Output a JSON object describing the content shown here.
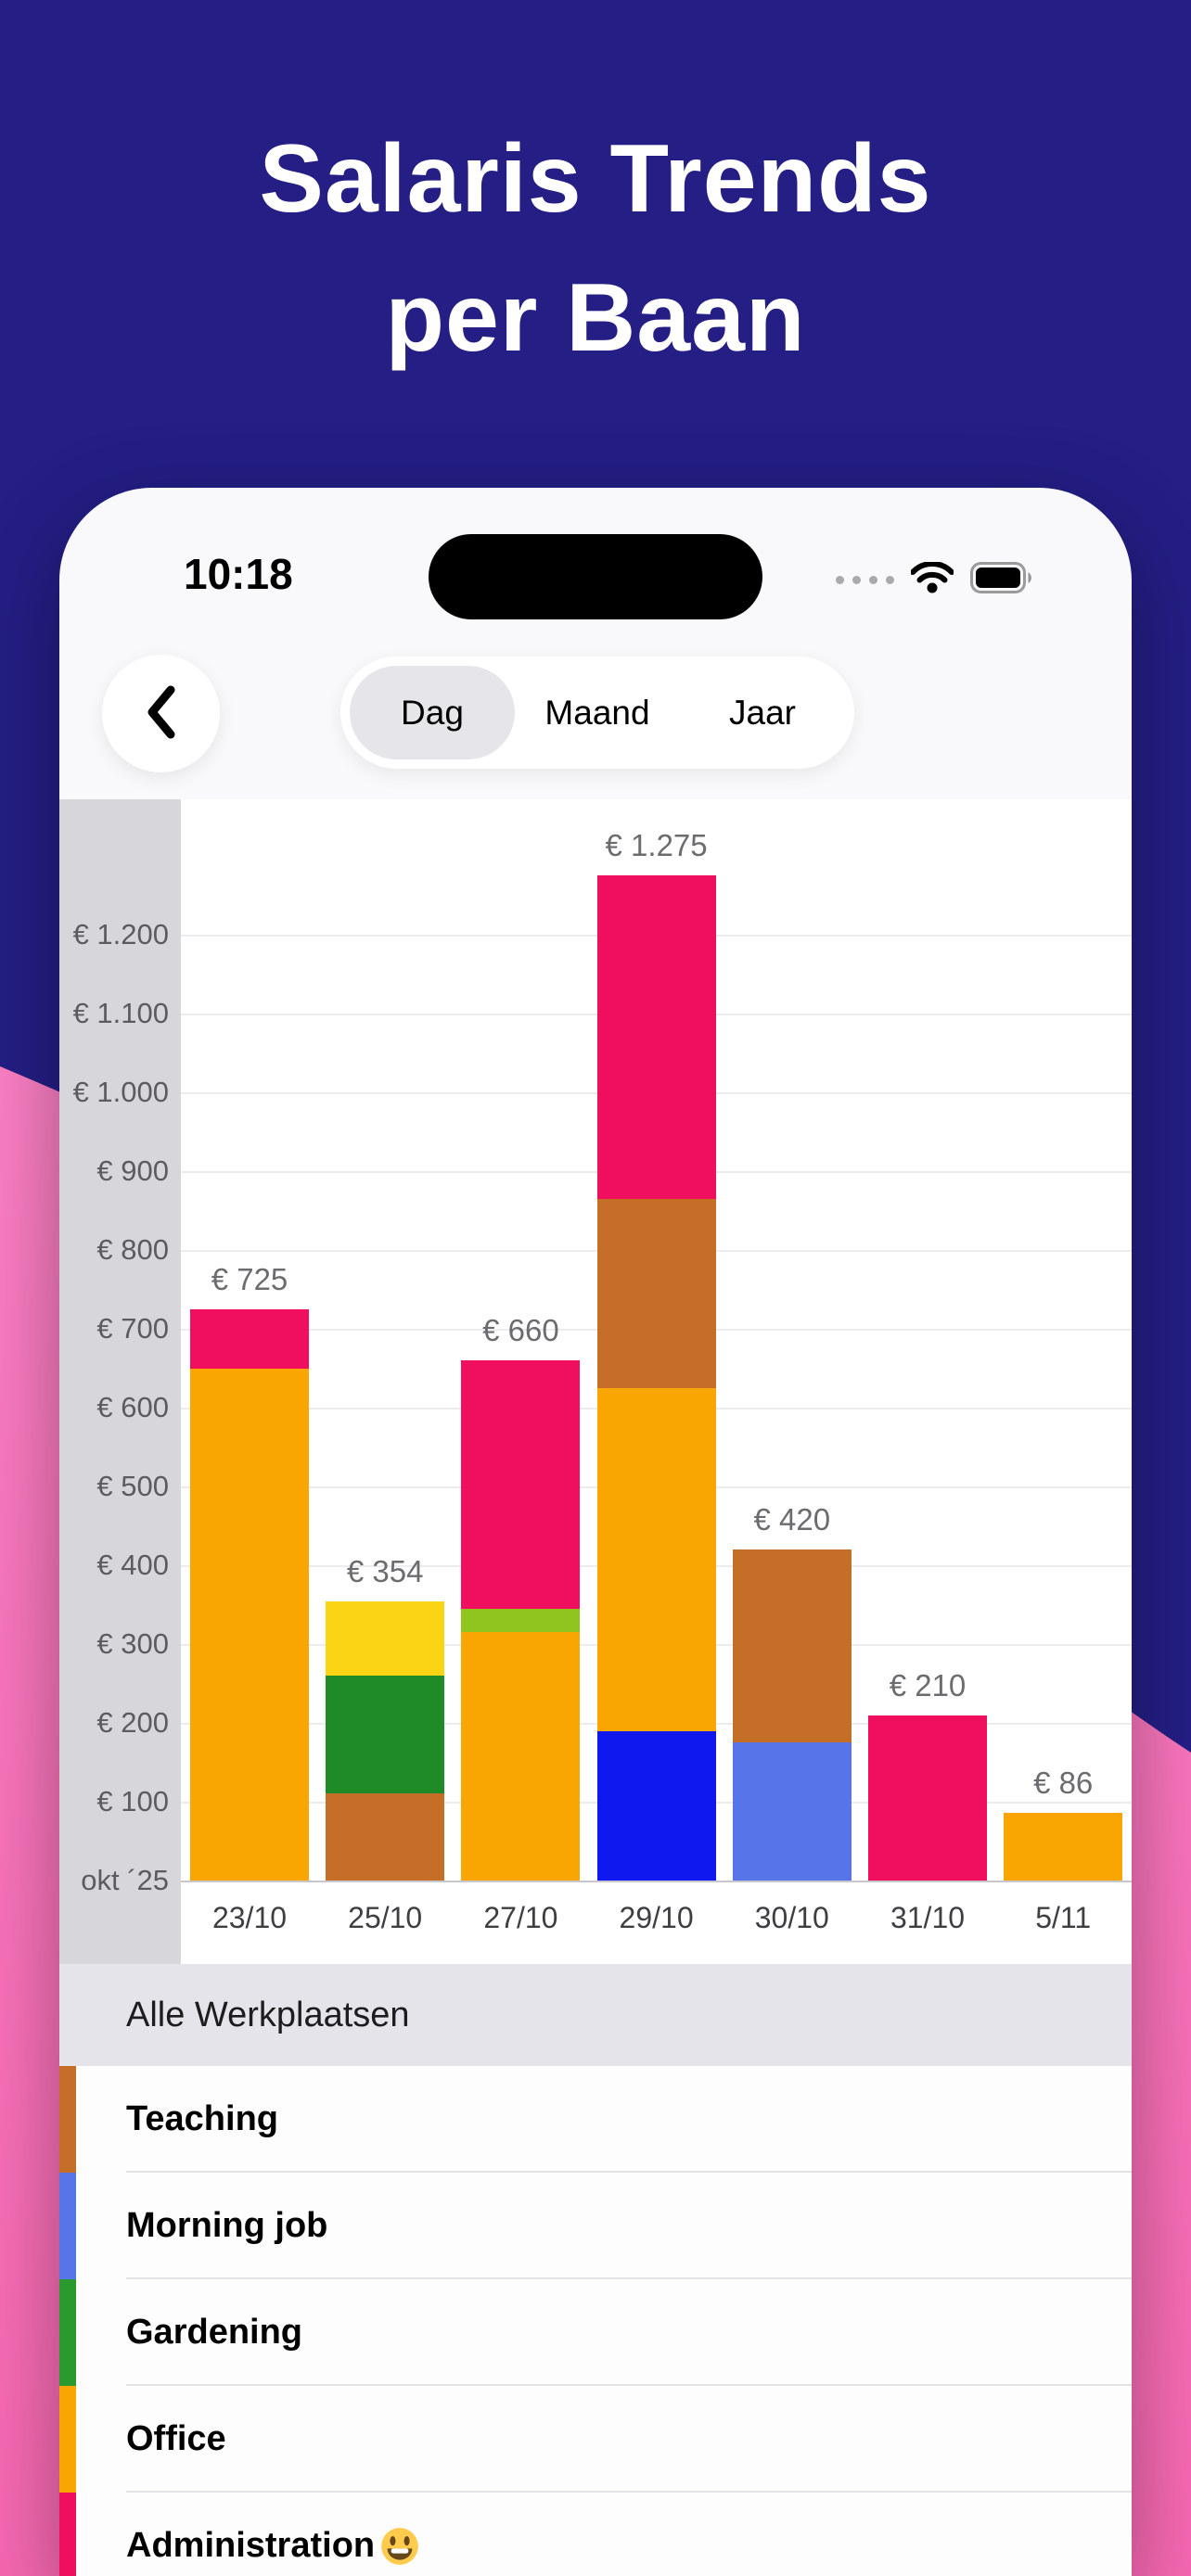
{
  "marketing": {
    "title_line1": "Salaris Trends",
    "title_line2": "per Baan"
  },
  "colors": {
    "background_top": "#241E85",
    "background_bottom": "#F96FB5",
    "selected_segment": "#E6E5EA"
  },
  "status_bar": {
    "time": "10:18"
  },
  "nav": {
    "segments": [
      {
        "label": "Dag",
        "selected": true
      },
      {
        "label": "Maand",
        "selected": false
      },
      {
        "label": "Jaar",
        "selected": false
      }
    ]
  },
  "chart_data": {
    "type": "bar",
    "stacked": true,
    "currency": "€",
    "ylim": [
      0,
      1300
    ],
    "grid": true,
    "legend_position": "bottom-list",
    "y_ticks": [
      {
        "label": "€ 1.200",
        "value": 1200
      },
      {
        "label": "€ 1.100",
        "value": 1100
      },
      {
        "label": "€ 1.000",
        "value": 1000
      },
      {
        "label": "€ 900",
        "value": 900
      },
      {
        "label": "€ 800",
        "value": 800
      },
      {
        "label": "€ 700",
        "value": 700
      },
      {
        "label": "€ 600",
        "value": 600
      },
      {
        "label": "€ 500",
        "value": 500
      },
      {
        "label": "€ 400",
        "value": 400
      },
      {
        "label": "€ 300",
        "value": 300
      },
      {
        "label": "€ 200",
        "value": 200
      },
      {
        "label": "€ 100",
        "value": 100
      }
    ],
    "baseline_label": "okt ´25",
    "categories": [
      "23/10",
      "25/10",
      "27/10",
      "29/10",
      "30/10",
      "31/10",
      "5/11"
    ],
    "bars": [
      {
        "category": "23/10",
        "total": 725,
        "total_label": "€ 725",
        "segments": [
          {
            "name": "Office",
            "color": "#F9A602",
            "value": 650
          },
          {
            "name": "Administration",
            "color": "#EF0F5E",
            "value": 75
          }
        ]
      },
      {
        "category": "25/10",
        "total": 354,
        "total_label": "€ 354",
        "segments": [
          {
            "name": "Teaching",
            "color": "#C46E27",
            "value": 110
          },
          {
            "name": "Gardening",
            "color": "#1F8A28",
            "value": 150
          },
          {
            "color": "#FBD415",
            "value": 94
          }
        ]
      },
      {
        "category": "27/10",
        "total": 660,
        "total_label": "€ 660",
        "segments": [
          {
            "name": "Office",
            "color": "#F9A602",
            "value": 315
          },
          {
            "color": "#90C41F",
            "value": 30
          },
          {
            "name": "Administration",
            "color": "#EF0F5E",
            "value": 315
          }
        ]
      },
      {
        "category": "29/10",
        "total": 1275,
        "total_label": "€ 1.275",
        "segments": [
          {
            "color": "#0E18EF",
            "value": 190
          },
          {
            "name": "Office",
            "color": "#F9A602",
            "value": 435
          },
          {
            "name": "Teaching",
            "color": "#C46E27",
            "value": 240
          },
          {
            "name": "Administration",
            "color": "#EF0F5E",
            "value": 410
          }
        ]
      },
      {
        "category": "30/10",
        "total": 420,
        "total_label": "€ 420",
        "segments": [
          {
            "name": "Morning job",
            "color": "#5774E8",
            "value": 175
          },
          {
            "name": "Teaching",
            "color": "#C46E27",
            "value": 245
          }
        ]
      },
      {
        "category": "31/10",
        "total": 210,
        "total_label": "€ 210",
        "segments": [
          {
            "name": "Administration",
            "color": "#EF0F5E",
            "value": 210
          }
        ]
      },
      {
        "category": "5/11",
        "total": 86,
        "total_label": "€ 86",
        "segments": [
          {
            "name": "Office",
            "color": "#F9A602",
            "value": 86
          }
        ]
      }
    ]
  },
  "legend": {
    "header": "Alle Werkplaatsen",
    "items": [
      {
        "label": "Teaching",
        "color": "#C46E27"
      },
      {
        "label": "Morning job",
        "color": "#5774E8"
      },
      {
        "label": "Gardening",
        "color": "#2B9A2E"
      },
      {
        "label": "Office",
        "color": "#F9A602"
      },
      {
        "label": "Administration",
        "emoji": "😀",
        "color": "#EF0F5E"
      }
    ]
  }
}
